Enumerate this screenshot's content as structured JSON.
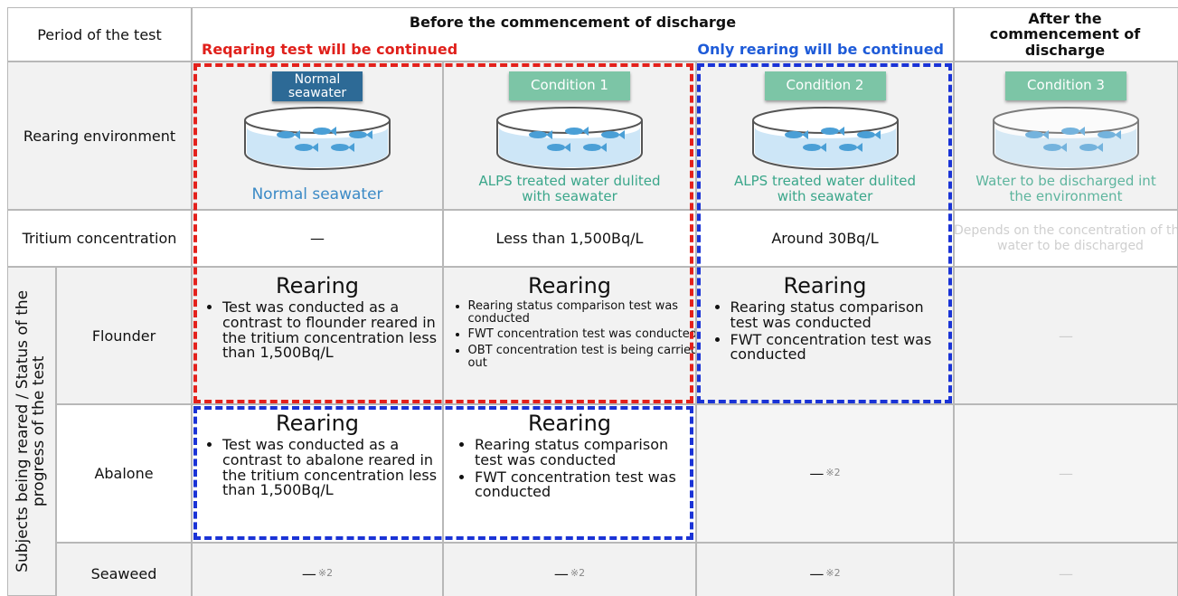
{
  "header": {
    "period": "Period of the test",
    "before": "Before the commencement of discharge",
    "after": "After the commencement of discharge",
    "continued": "Reqaring test will be continued",
    "rearing_only": "Only rearing will be continued"
  },
  "environment": {
    "label": "Rearing environment",
    "cells": [
      {
        "tag": "Normal seawater",
        "caption": "Normal seawater"
      },
      {
        "tag": "Condition 1",
        "caption": "ALPS treated water dulited with seawater"
      },
      {
        "tag": "Condition 2",
        "caption": "ALPS treated water dulited with seawater"
      },
      {
        "tag": "Condition 3",
        "caption": "Water to be discharged int the environment"
      }
    ]
  },
  "tritium": {
    "label": "Tritium concentration",
    "cells": [
      "—",
      "Less than 1,500Bq/L",
      "Around 30Bq/L",
      "Depends on the concentration of the water to be discharged"
    ]
  },
  "subjects": {
    "label": "Subjects being reared / Status of the progress of the test",
    "rows": [
      {
        "name": "Flounder",
        "cells": [
          {
            "heading": "Rearing",
            "bullets": [
              "Test was conducted as a contrast to flounder reared in the tritium concentration less than 1,500Bq/L"
            ]
          },
          {
            "heading": "Rearing",
            "bullets": [
              "Rearing status comparison test was conducted",
              "FWT concentration test was conducted",
              "OBT concentration test is being carried out"
            ]
          },
          {
            "heading": "Rearing",
            "bullets": [
              "Rearing status comparison test was conducted",
              "FWT concentration test was conducted"
            ]
          },
          {
            "text": "—"
          }
        ]
      },
      {
        "name": "Abalone",
        "cells": [
          {
            "heading": "Rearing",
            "bullets": [
              "Test was conducted as a contrast to abalone reared in the tritium concentration less than 1,500Bq/L"
            ]
          },
          {
            "heading": "Rearing",
            "bullets": [
              "Rearing status comparison test was conducted",
              "FWT concentration test was conducted"
            ]
          },
          {
            "text": "—",
            "note": "※2"
          },
          {
            "text": "—"
          }
        ]
      },
      {
        "name": "Seaweed",
        "cells": [
          {
            "text": "—",
            "note": "※2"
          },
          {
            "text": "—",
            "note": "※2"
          },
          {
            "text": "—",
            "note": "※2"
          },
          {
            "text": "—"
          }
        ]
      }
    ]
  }
}
